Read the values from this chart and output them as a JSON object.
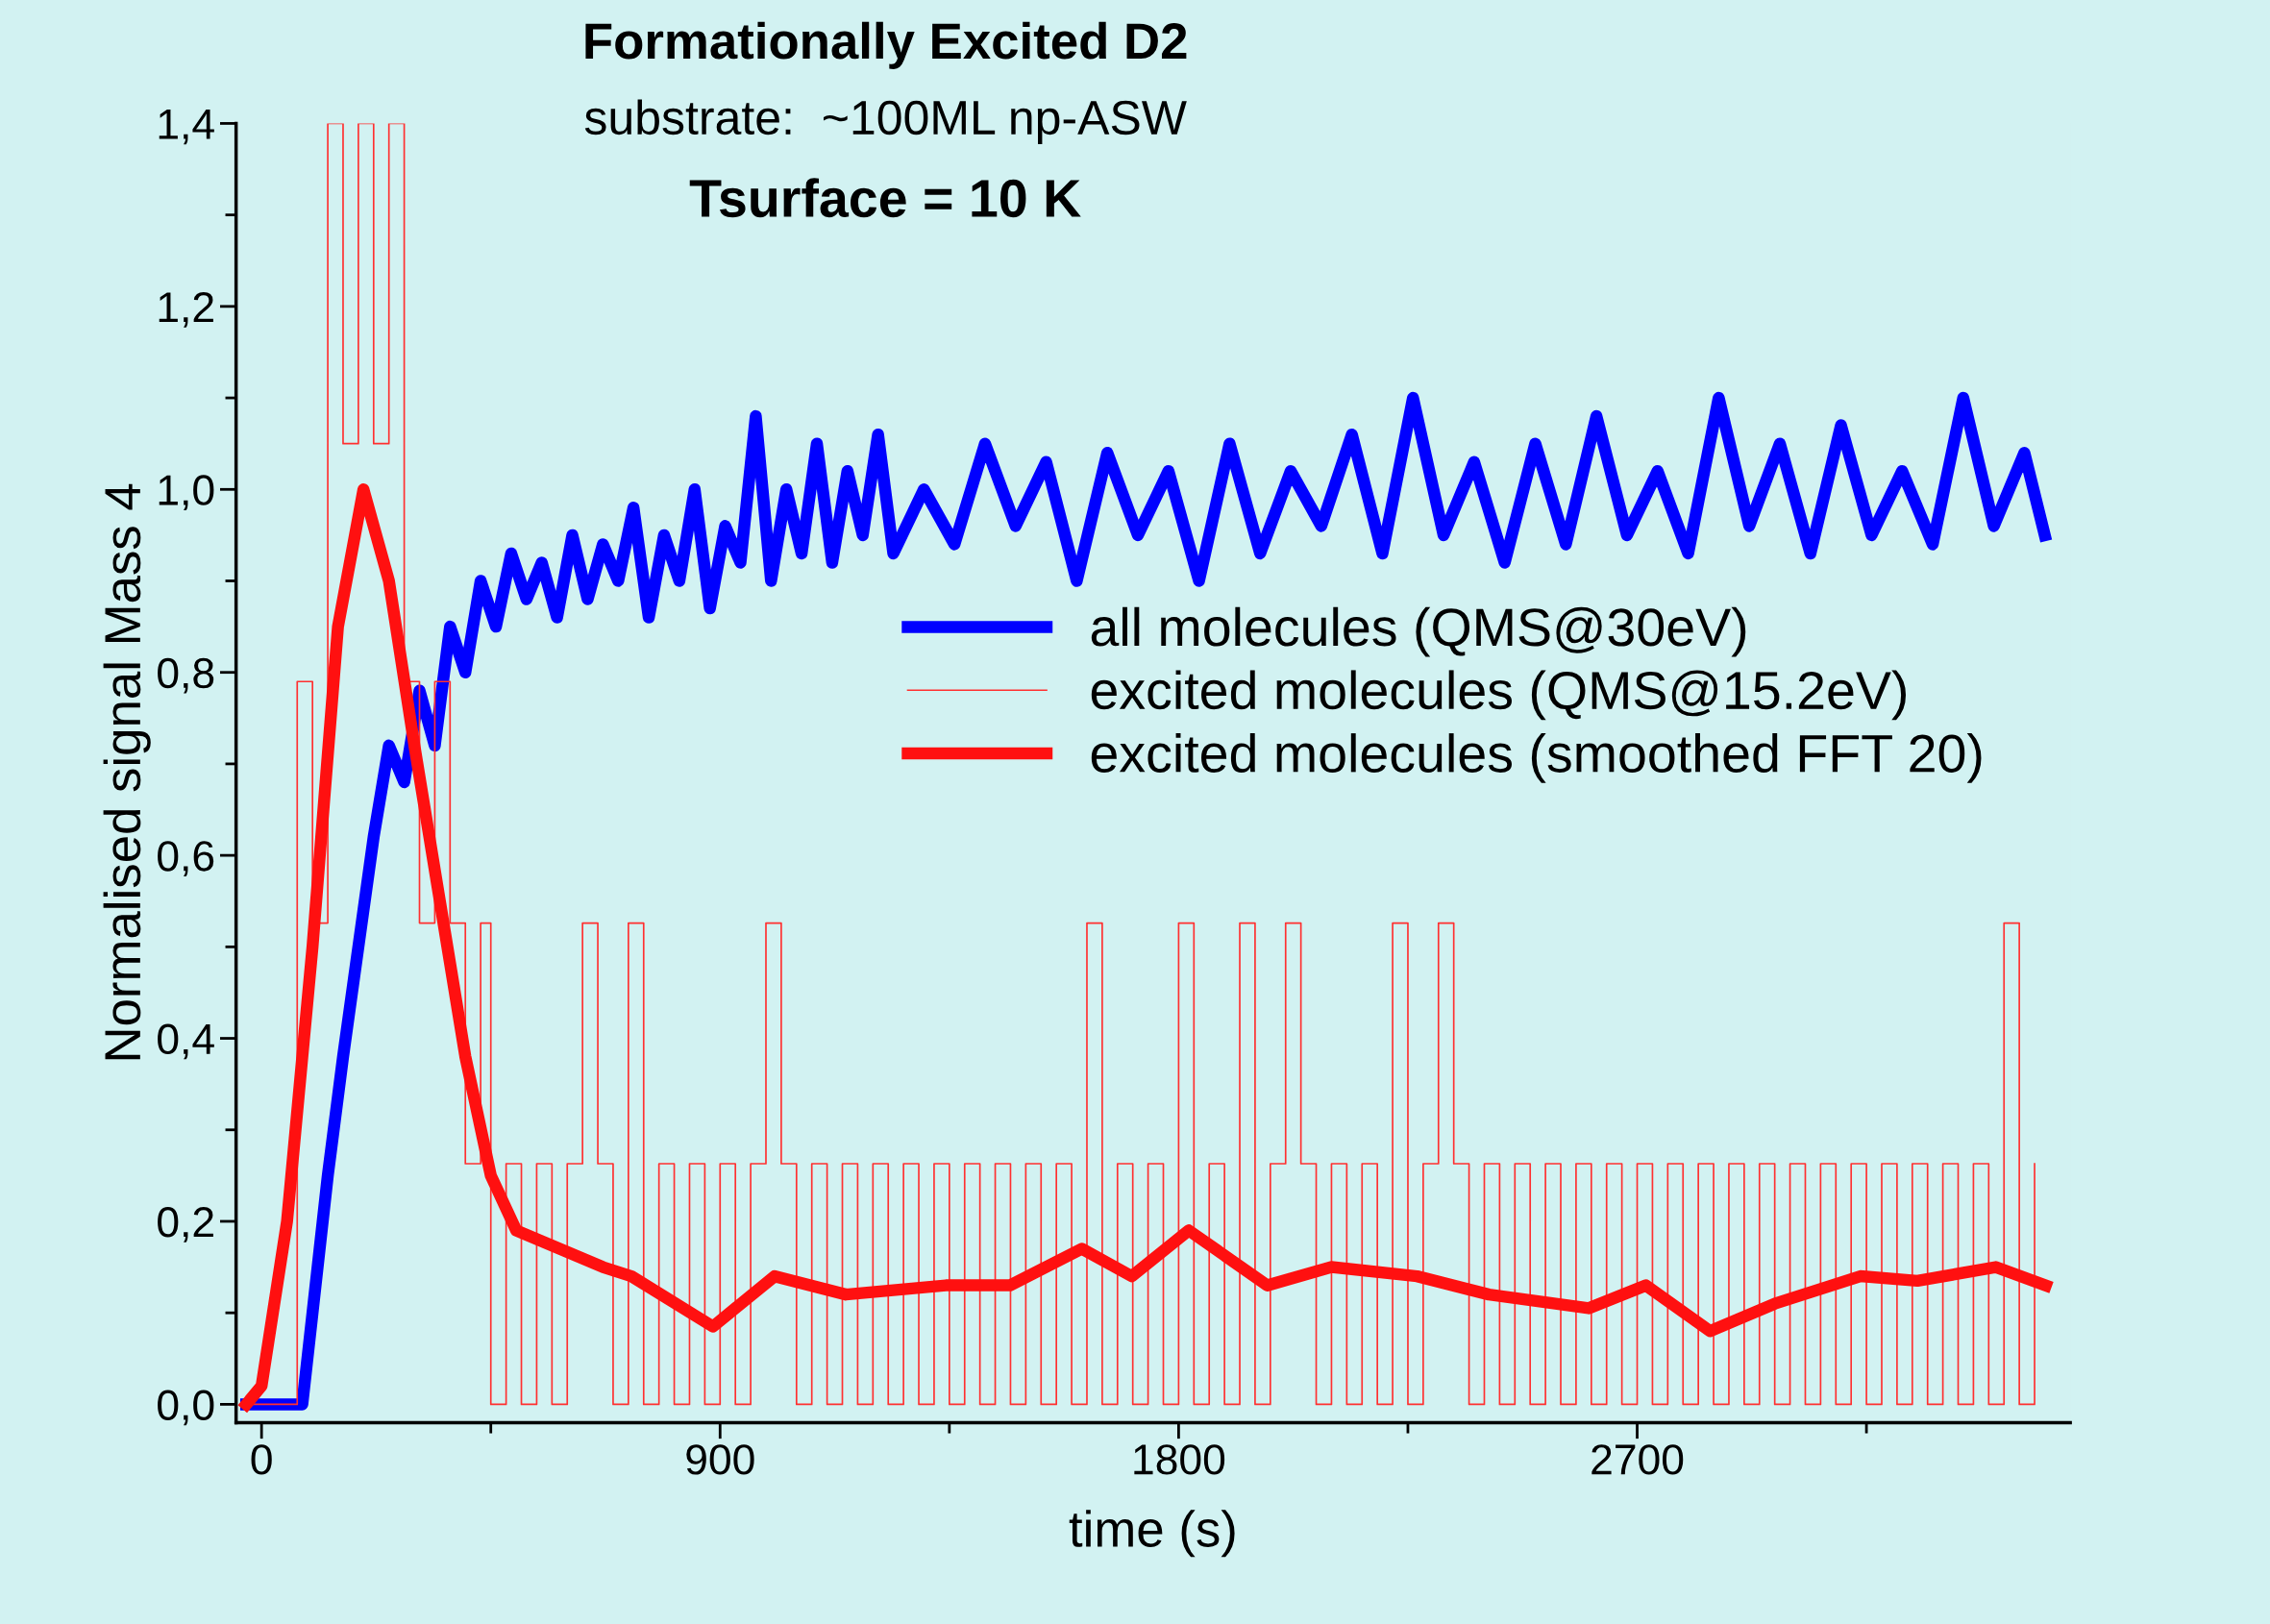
{
  "chart_data": {
    "type": "line",
    "title": "Formationally Excited D2",
    "subtitle": "substrate:  ~100ML np-ASW",
    "annotations": [
      "Tsurface = 10 K"
    ],
    "xlabel": "time (s)",
    "ylabel": "Normalised signal Mass 4",
    "xlim": [
      -50,
      3550
    ],
    "ylim": [
      -0.02,
      1.4
    ],
    "xticks": [
      0,
      {
        "value": 450,
        "label": null
      },
      900,
      {
        "value": 1350,
        "label": null
      },
      1800,
      {
        "value": 2250,
        "label": null
      },
      2700,
      {
        "value": 3150,
        "label": null
      }
    ],
    "yticks": [
      {
        "value": 0,
        "label": "0,0"
      },
      {
        "value": 0.1,
        "label": null
      },
      {
        "value": 0.2,
        "label": "0,2"
      },
      {
        "value": 0.3,
        "label": null
      },
      {
        "value": 0.4,
        "label": "0,4"
      },
      {
        "value": 0.5,
        "label": null
      },
      {
        "value": 0.6,
        "label": "0,6"
      },
      {
        "value": 0.7,
        "label": null
      },
      {
        "value": 0.8,
        "label": "0,8"
      },
      {
        "value": 0.9,
        "label": null
      },
      {
        "value": 1.0,
        "label": "1,0"
      },
      {
        "value": 1.1,
        "label": null
      },
      {
        "value": 1.2,
        "label": "1,2"
      },
      {
        "value": 1.3,
        "label": null
      },
      {
        "value": 1.4,
        "label": "1,4"
      }
    ],
    "grid": false,
    "legend": "right",
    "series": [
      {
        "name": "all molecules (QMS@30eV)",
        "color": "#0000ff",
        "x": [
          -30,
          80,
          100,
          130,
          160,
          190,
          220,
          250,
          280,
          310,
          340,
          370,
          400,
          430,
          460,
          490,
          520,
          550,
          580,
          610,
          640,
          670,
          700,
          730,
          760,
          790,
          820,
          850,
          880,
          910,
          940,
          970,
          1000,
          1030,
          1060,
          1090,
          1120,
          1150,
          1180,
          1210,
          1240,
          1300,
          1360,
          1420,
          1480,
          1540,
          1600,
          1660,
          1720,
          1780,
          1840,
          1900,
          1960,
          2020,
          2080,
          2140,
          2200,
          2260,
          2320,
          2380,
          2440,
          2500,
          2560,
          2620,
          2680,
          2740,
          2800,
          2860,
          2920,
          2980,
          3040,
          3100,
          3160,
          3220,
          3280,
          3340,
          3400,
          3460,
          3500
        ],
        "values": [
          0,
          0,
          0.1,
          0.25,
          0.38,
          0.5,
          0.62,
          0.72,
          0.68,
          0.78,
          0.72,
          0.85,
          0.8,
          0.9,
          0.85,
          0.93,
          0.88,
          0.92,
          0.86,
          0.95,
          0.88,
          0.94,
          0.9,
          0.98,
          0.86,
          0.95,
          0.9,
          1.0,
          0.87,
          0.96,
          0.92,
          1.08,
          0.9,
          1.0,
          0.93,
          1.05,
          0.92,
          1.02,
          0.95,
          1.06,
          0.93,
          1.0,
          0.94,
          1.05,
          0.96,
          1.03,
          0.9,
          1.04,
          0.95,
          1.02,
          0.9,
          1.05,
          0.93,
          1.02,
          0.96,
          1.06,
          0.93,
          1.1,
          0.95,
          1.03,
          0.92,
          1.05,
          0.94,
          1.08,
          0.95,
          1.02,
          0.93,
          1.1,
          0.96,
          1.05,
          0.93,
          1.07,
          0.95,
          1.02,
          0.94,
          1.1,
          0.96,
          1.04,
          0.95
        ]
      },
      {
        "name": "excited molecules (QMS@15.2eV)",
        "color": "#ff3030",
        "type": "step",
        "x": [
          -30,
          70,
          100,
          130,
          160,
          190,
          220,
          250,
          280,
          310,
          340,
          370,
          400,
          430,
          450,
          480,
          510,
          540,
          570,
          600,
          630,
          660,
          690,
          720,
          750,
          780,
          810,
          840,
          870,
          900,
          930,
          960,
          990,
          1020,
          1050,
          1080,
          1110,
          1140,
          1170,
          1200,
          1230,
          1260,
          1290,
          1320,
          1350,
          1380,
          1410,
          1440,
          1470,
          1500,
          1530,
          1560,
          1590,
          1620,
          1650,
          1680,
          1710,
          1740,
          1770,
          1800,
          1830,
          1860,
          1890,
          1920,
          1950,
          1980,
          2010,
          2040,
          2070,
          2100,
          2130,
          2160,
          2190,
          2220,
          2250,
          2280,
          2310,
          2340,
          2370,
          2400,
          2430,
          2460,
          2490,
          2520,
          2550,
          2580,
          2610,
          2640,
          2670,
          2700,
          2730,
          2760,
          2790,
          2820,
          2850,
          2880,
          2910,
          2940,
          2970,
          3000,
          3030,
          3060,
          3090,
          3120,
          3150,
          3180,
          3210,
          3240,
          3270,
          3300,
          3330,
          3360,
          3390,
          3420,
          3450,
          3480
        ],
        "values": [
          0,
          0.79,
          0.526,
          1.4,
          1.05,
          1.4,
          1.05,
          1.4,
          0.79,
          0.526,
          0.79,
          0.526,
          0.263,
          0.526,
          0,
          0.263,
          0,
          0.263,
          0,
          0.263,
          0.526,
          0.263,
          0,
          0.526,
          0,
          0.263,
          0,
          0.263,
          0,
          0.263,
          0,
          0.263,
          0.526,
          0.263,
          0,
          0.263,
          0,
          0.263,
          0,
          0.263,
          0,
          0.263,
          0,
          0.263,
          0,
          0.263,
          0,
          0.263,
          0,
          0.263,
          0,
          0.263,
          0,
          0.526,
          0,
          0.263,
          0,
          0.263,
          0,
          0.526,
          0,
          0.263,
          0,
          0.526,
          0,
          0.263,
          0.526,
          0.263,
          0,
          0.263,
          0,
          0.263,
          0,
          0.526,
          0,
          0.263,
          0.526,
          0.263,
          0,
          0.263,
          0,
          0.263,
          0,
          0.263,
          0,
          0.263,
          0,
          0.263,
          0,
          0.263,
          0,
          0.263,
          0,
          0.263,
          0,
          0.263,
          0,
          0.263,
          0,
          0.263,
          0,
          0.263,
          0,
          0.263,
          0,
          0.263,
          0,
          0.263,
          0,
          0.263,
          0,
          0.263,
          0,
          0.526,
          0,
          0.263
        ]
      },
      {
        "name": "excited molecules (smoothed FFT 20)",
        "color": "#ff1010",
        "x": [
          -30,
          0,
          50,
          100,
          150,
          200,
          250,
          300,
          350,
          400,
          450,
          500,
          670,
          726,
          886,
          1007,
          1147,
          1343,
          1469,
          1610,
          1708,
          1820,
          1974,
          2100,
          2268,
          2409,
          2605,
          2717,
          2843,
          2970,
          3138,
          3250,
          3404,
          3502
        ],
        "values": [
          0,
          0.02,
          0.2,
          0.5,
          0.85,
          1.0,
          0.9,
          0.72,
          0.55,
          0.38,
          0.25,
          0.19,
          0.15,
          0.14,
          0.085,
          0.14,
          0.12,
          0.13,
          0.13,
          0.17,
          0.14,
          0.19,
          0.13,
          0.15,
          0.14,
          0.12,
          0.105,
          0.13,
          0.08,
          0.11,
          0.14,
          0.135,
          0.15,
          0.13
        ]
      }
    ]
  }
}
